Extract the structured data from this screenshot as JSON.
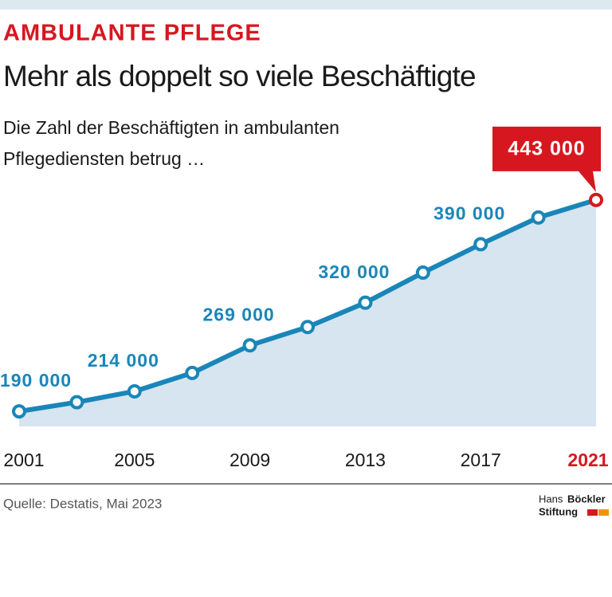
{
  "chart_data": {
    "type": "line",
    "kicker": "AMBULANTE PFLEGE",
    "title": "Mehr als doppelt so viele Beschäftigte",
    "subtitle": [
      "Die Zahl der Beschäftigten in ambulanten",
      "Pflegediensten betrug …"
    ],
    "x": [
      2001,
      2003,
      2005,
      2007,
      2009,
      2011,
      2013,
      2015,
      2017,
      2019,
      2021
    ],
    "values": [
      190000,
      201000,
      214000,
      236000,
      269000,
      291000,
      320000,
      356000,
      390000,
      422000,
      443000
    ],
    "value_labels": [
      "190 000",
      null,
      "214 000",
      null,
      "269 000",
      null,
      "320 000",
      null,
      "390 000",
      null,
      "443 000"
    ],
    "color": "#1a86b8",
    "fill_color": "#d6e5f0",
    "highlight_color": "#d7171f",
    "xlim": [
      2001,
      2021
    ],
    "xticks": [
      2001,
      2005,
      2009,
      2013,
      2017,
      2021
    ],
    "ylim": [
      172000,
      460000
    ],
    "source": "Quelle: Destatis, Mai 2023",
    "logo": {
      "line1a": "Hans",
      "line1b": "Böckler",
      "line2": "Stiftung"
    }
  }
}
